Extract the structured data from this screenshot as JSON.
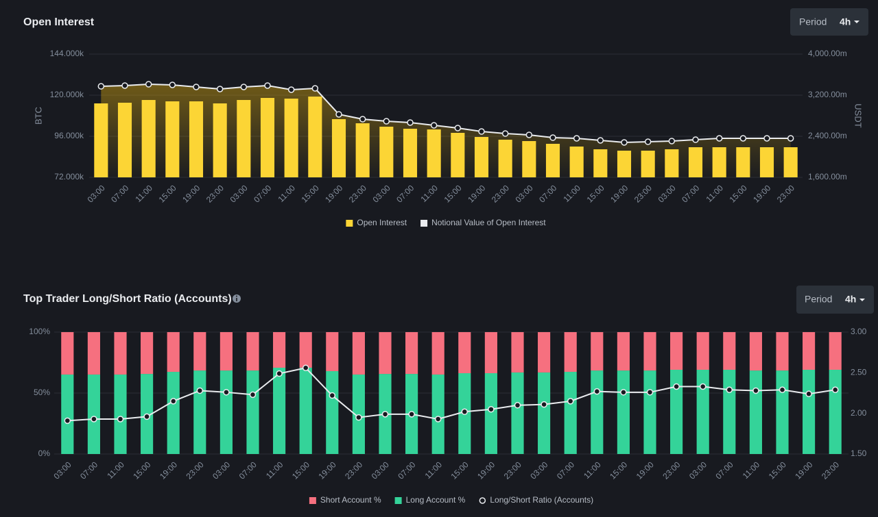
{
  "controls": [
    {
      "label": "Period",
      "value": "4h"
    },
    {
      "label": "Period",
      "value": "4h"
    }
  ],
  "chart_data": [
    {
      "type": "bar",
      "title": "Open Interest",
      "ylabel": "BTC",
      "y2label": "USDT",
      "categories": [
        "03:00",
        "07:00",
        "11:00",
        "15:00",
        "19:00",
        "23:00",
        "03:00",
        "07:00",
        "11:00",
        "15:00",
        "19:00",
        "23:00",
        "03:00",
        "07:00",
        "11:00",
        "15:00",
        "19:00",
        "23:00",
        "03:00",
        "07:00",
        "11:00",
        "15:00",
        "19:00",
        "23:00",
        "03:00",
        "07:00",
        "11:00",
        "15:00",
        "19:00",
        "23:00"
      ],
      "series": [
        {
          "name": "Open Interest",
          "color": "#fcd535",
          "values": [
            115200,
            115600,
            117200,
            116400,
            116400,
            115200,
            117200,
            118400,
            118000,
            119200,
            106000,
            103600,
            101600,
            100400,
            100000,
            98000,
            95600,
            94000,
            93200,
            91600,
            90000,
            88400,
            87600,
            87600,
            88400,
            89600,
            89600,
            89600,
            89600,
            89600
          ]
        },
        {
          "name": "Notional Value of Open Interest",
          "color": "#eaecef",
          "type": "line",
          "axis": "y2",
          "values": [
            3373,
            3387,
            3413,
            3400,
            3360,
            3320,
            3360,
            3387,
            3307,
            3333,
            2827,
            2733,
            2693,
            2667,
            2613,
            2560,
            2493,
            2453,
            2427,
            2373,
            2360,
            2320,
            2280,
            2293,
            2307,
            2333,
            2360,
            2360,
            2360,
            2360
          ]
        }
      ],
      "ylim": [
        72000,
        144000
      ],
      "yticks": [
        {
          "value": 72000,
          "label": "72.000k"
        },
        {
          "value": 96000,
          "label": "96.000k"
        },
        {
          "value": 120000,
          "label": "120.000k"
        },
        {
          "value": 144000,
          "label": "144.000k"
        }
      ],
      "y2lim": [
        1600,
        4000
      ],
      "y2ticks": [
        {
          "value": 1600,
          "label": "1,600.00m"
        },
        {
          "value": 2400,
          "label": "2,400.00m"
        },
        {
          "value": 3200,
          "label": "3,200.00m"
        },
        {
          "value": 4000,
          "label": "4,000.00m"
        }
      ],
      "grid": true,
      "stacked": false
    },
    {
      "type": "bar",
      "title": "Top Trader Long/Short Ratio (Accounts)",
      "categories": [
        "03:00",
        "07:00",
        "11:00",
        "15:00",
        "19:00",
        "23:00",
        "03:00",
        "07:00",
        "11:00",
        "15:00",
        "19:00",
        "23:00",
        "03:00",
        "07:00",
        "11:00",
        "15:00",
        "19:00",
        "23:00",
        "03:00",
        "07:00",
        "11:00",
        "15:00",
        "19:00",
        "23:00",
        "03:00",
        "07:00",
        "11:00",
        "15:00",
        "19:00",
        "23:00"
      ],
      "series": [
        {
          "name": "Short Account %",
          "color": "#f6707f",
          "values": [
            34.8,
            34.8,
            34.8,
            34.3,
            32.6,
            31.5,
            31.5,
            31.5,
            29.2,
            29.2,
            32.0,
            34.8,
            34.3,
            34.3,
            34.8,
            33.7,
            33.7,
            33.1,
            33.1,
            32.6,
            31.5,
            31.5,
            31.5,
            30.9,
            30.9,
            30.9,
            31.5,
            31.5,
            30.9,
            30.9
          ]
        },
        {
          "name": "Long Account %",
          "color": "#34d399",
          "values": [
            65.2,
            65.2,
            65.2,
            65.7,
            67.4,
            68.5,
            68.5,
            68.5,
            70.8,
            70.8,
            68.0,
            65.2,
            65.7,
            65.7,
            65.2,
            66.3,
            66.3,
            66.9,
            66.9,
            67.4,
            68.5,
            68.5,
            68.5,
            69.1,
            69.1,
            69.1,
            68.5,
            68.5,
            69.1,
            69.1
          ]
        },
        {
          "name": "Long/Short Ratio (Accounts)",
          "color": "#eaecef",
          "type": "line",
          "axis": "y2",
          "values": [
            1.91,
            1.93,
            1.93,
            1.96,
            2.15,
            2.28,
            2.26,
            2.23,
            2.49,
            2.56,
            2.22,
            1.95,
            1.99,
            1.99,
            1.93,
            2.02,
            2.05,
            2.1,
            2.11,
            2.15,
            2.27,
            2.26,
            2.26,
            2.33,
            2.33,
            2.29,
            2.28,
            2.29,
            2.24,
            2.29
          ]
        }
      ],
      "ylim": [
        0,
        100
      ],
      "yticks": [
        {
          "value": 0,
          "label": "0%"
        },
        {
          "value": 50,
          "label": "50%"
        },
        {
          "value": 100,
          "label": "100%"
        }
      ],
      "y2lim": [
        1.5,
        3
      ],
      "y2ticks": [
        {
          "value": 1.5,
          "label": "1.50"
        },
        {
          "value": 2,
          "label": "2.00"
        },
        {
          "value": 2.5,
          "label": "2.50"
        },
        {
          "value": 3,
          "label": "3.00"
        }
      ],
      "grid": true,
      "stacked": true
    }
  ]
}
